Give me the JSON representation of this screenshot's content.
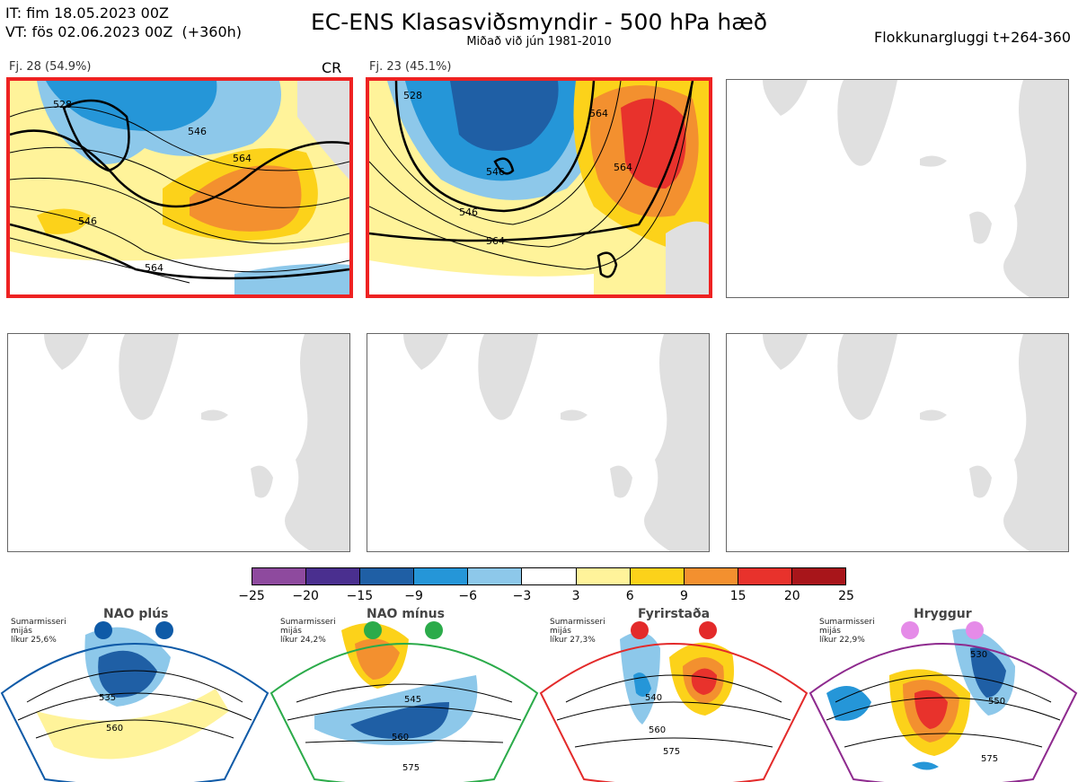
{
  "header": {
    "it_line": "IT: fim 18.05.2023 00Z",
    "vt_line": "VT: fös 02.06.2023 00Z  (+360h)",
    "title": "EC-ENS Klasasviðsmyndir - 500 hPa hæð",
    "subtitle": "Miðað við jún 1981-2010",
    "window": "Flokkunargluggi t+264-360"
  },
  "panels": [
    {
      "label": "Fj. 28 (54.9%)",
      "tag": "CR",
      "selected": true,
      "contours": [
        "528",
        "546",
        "546",
        "564",
        "564"
      ]
    },
    {
      "label": "Fj. 23 (45.1%)",
      "tag": "",
      "selected": true,
      "contours": [
        "528",
        "546",
        "546",
        "564",
        "564",
        "564"
      ]
    },
    {
      "label": "",
      "tag": "",
      "selected": false,
      "contours": []
    },
    {
      "label": "",
      "tag": "",
      "selected": false,
      "contours": []
    },
    {
      "label": "",
      "tag": "",
      "selected": false,
      "contours": []
    },
    {
      "label": "",
      "tag": "",
      "selected": false,
      "contours": []
    }
  ],
  "colorbar": {
    "colors": [
      "#8e4a9e",
      "#4a2f8f",
      "#1f5fa5",
      "#2596d8",
      "#8dc8ea",
      "#ffffff",
      "#fff39a",
      "#fcd21a",
      "#f3902f",
      "#e8322c",
      "#a8151a"
    ],
    "ticks": [
      "−25",
      "−20",
      "−15",
      "−9",
      "−6",
      "−3",
      "3",
      "6",
      "9",
      "15",
      "20",
      "25"
    ]
  },
  "regimes": [
    {
      "name": "NAO plús",
      "season": "Sumarmisseri",
      "sub": "mijás",
      "prob": "líkur 25,6%",
      "color": "#0e5aa7",
      "dot": "#0e5aa7",
      "contours": [
        "535",
        "560"
      ]
    },
    {
      "name": "NAO mínus",
      "season": "Sumarmisseri",
      "sub": "mijás",
      "prob": "líkur 24,2%",
      "color": "#2bab4a",
      "dot": "#2bab4a",
      "contours": [
        "545",
        "560",
        "575"
      ]
    },
    {
      "name": "Fyrirstaða",
      "season": "Sumarmisseri",
      "sub": "mijás",
      "prob": "líkur 27,3%",
      "color": "#e32a2a",
      "dot": "#e32a2a",
      "contours": [
        "540",
        "560",
        "575"
      ]
    },
    {
      "name": "Hryggur",
      "season": "Sumarmisseri",
      "sub": "mijás",
      "prob": "líkur 22,9%",
      "color": "#8e2a8e",
      "dot": "#e58be8",
      "contours": [
        "530",
        "550",
        "575"
      ]
    }
  ]
}
